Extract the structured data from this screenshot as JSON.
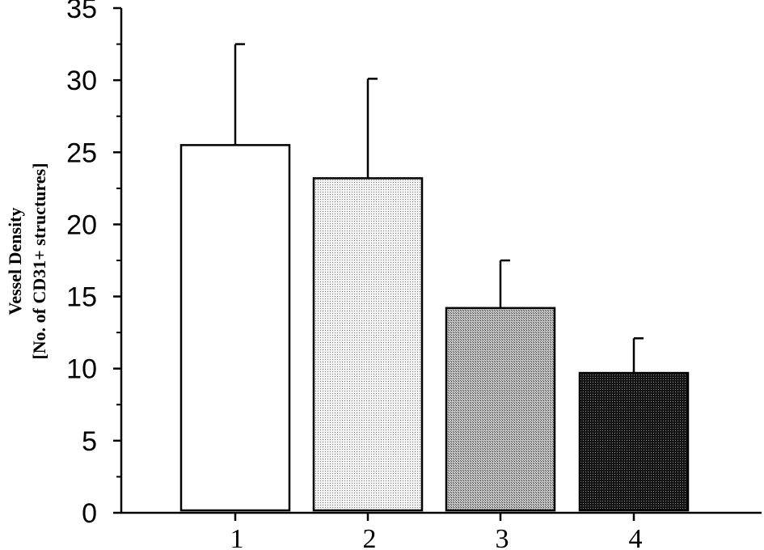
{
  "chart_data": {
    "type": "bar",
    "categories": [
      "1",
      "2",
      "3",
      "4"
    ],
    "values": [
      25.5,
      23.2,
      14.2,
      9.7
    ],
    "errors": [
      7.0,
      6.9,
      3.3,
      2.4
    ],
    "ylabel_line1": "Vessel Density",
    "ylabel_line2": "[No. of CD31+ structures]",
    "xlabel": "",
    "title": "",
    "ylim": [
      0,
      35
    ],
    "yticks": [
      0,
      5,
      10,
      15,
      20,
      25,
      30,
      35
    ],
    "grid": false,
    "legend": "none",
    "bar_fills": [
      "#ffffff",
      "#e4e4e4",
      "#a8a8a8",
      "#262626"
    ]
  }
}
